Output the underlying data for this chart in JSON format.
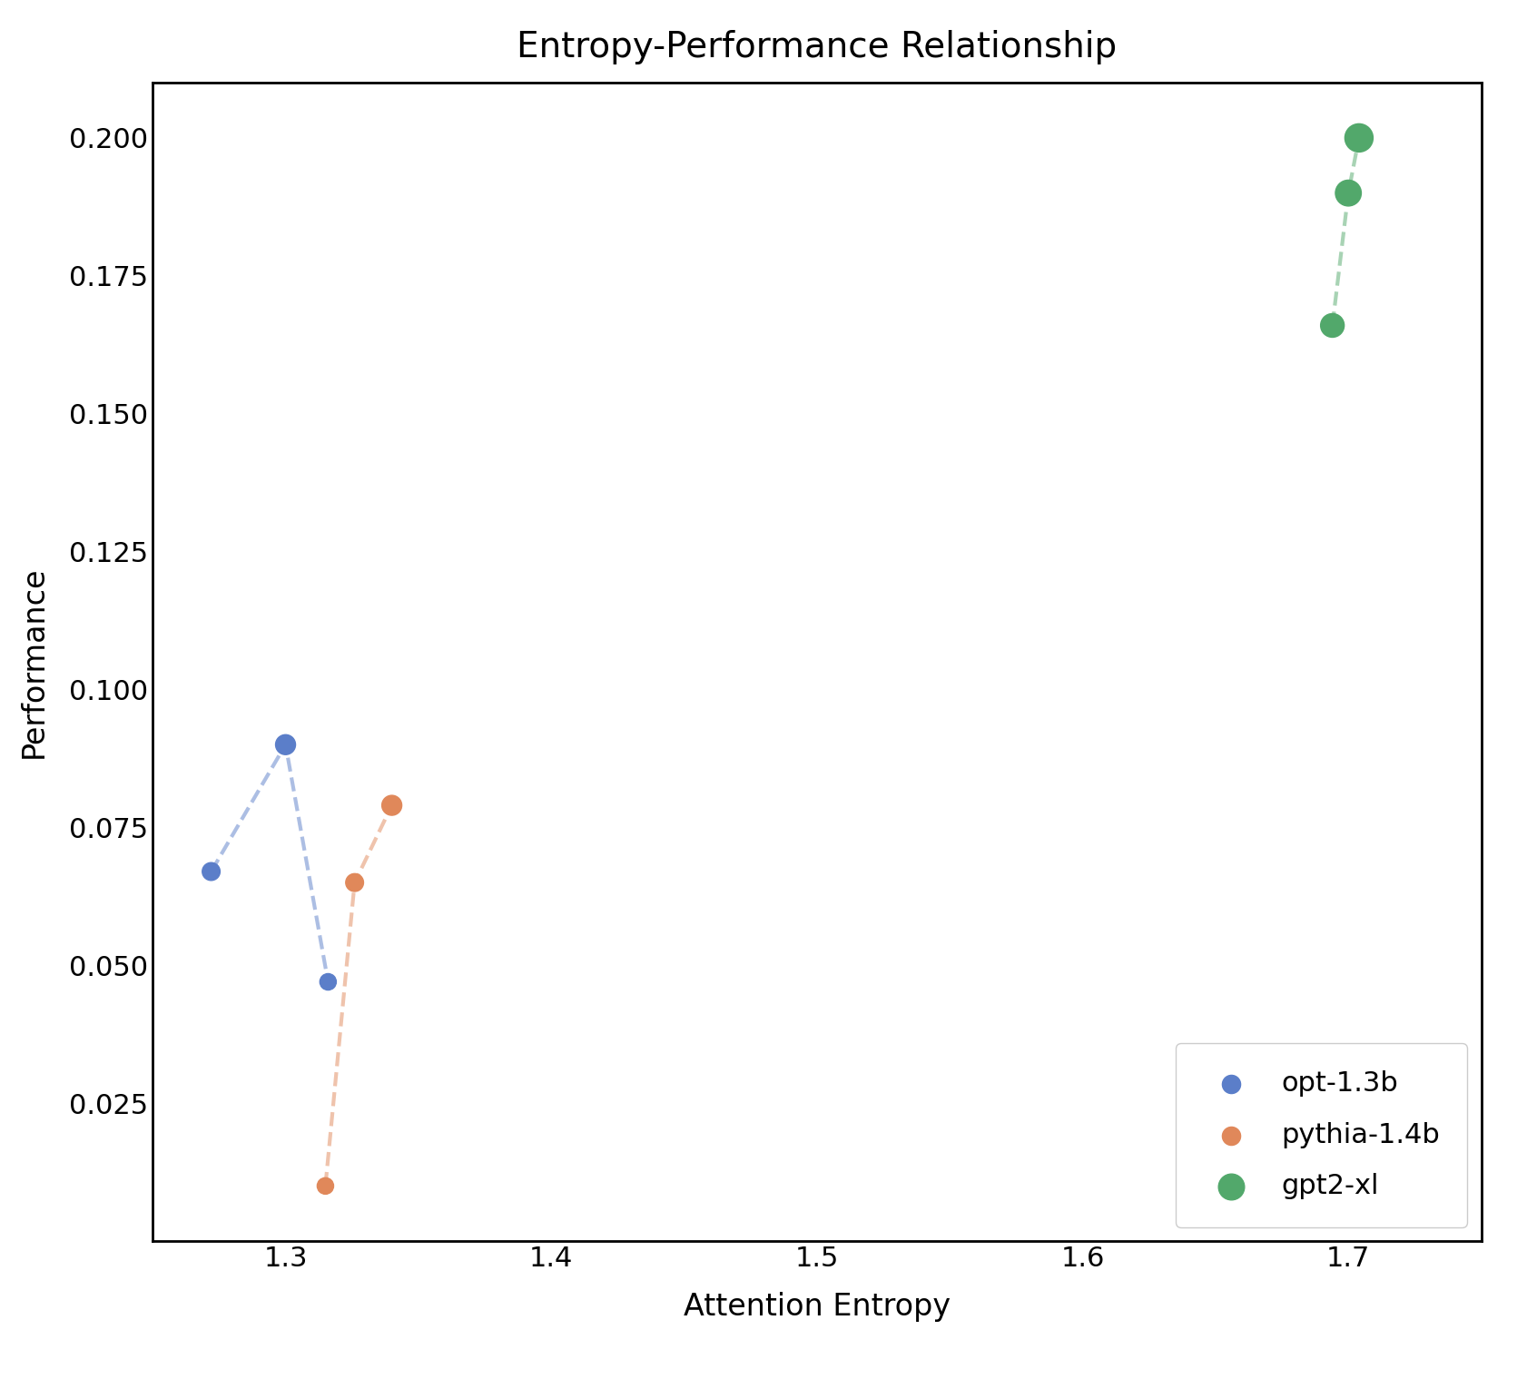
{
  "title": "Entropy-Performance Relationship",
  "xlabel": "Attention Entropy",
  "ylabel": "Performance",
  "models": [
    {
      "label": "opt-1.3b",
      "color": "#5b7ec9",
      "entropy": [
        1.272,
        1.3,
        1.316
      ],
      "performance": [
        0.067,
        0.09,
        0.047
      ],
      "sizes": [
        200,
        250,
        170
      ]
    },
    {
      "label": "pythia-1.4b",
      "color": "#e0885a",
      "entropy": [
        1.315,
        1.326,
        1.34
      ],
      "performance": [
        0.01,
        0.065,
        0.079
      ],
      "sizes": [
        170,
        200,
        250
      ]
    },
    {
      "label": "gpt2-xl",
      "color": "#52a86b",
      "entropy": [
        1.694,
        1.7,
        1.704
      ],
      "performance": [
        0.166,
        0.19,
        0.2
      ],
      "sizes": [
        350,
        420,
        500
      ]
    }
  ],
  "xlim": [
    1.25,
    1.75
  ],
  "ylim": [
    0.0,
    0.21
  ],
  "xticks": [
    1.3,
    1.4,
    1.5,
    1.6,
    1.7
  ],
  "yticks": [
    0.025,
    0.05,
    0.075,
    0.1,
    0.125,
    0.15,
    0.175,
    0.2
  ],
  "background_color": "#ffffff",
  "title_fontsize": 28,
  "label_fontsize": 24,
  "tick_fontsize": 22,
  "legend_fontsize": 22
}
